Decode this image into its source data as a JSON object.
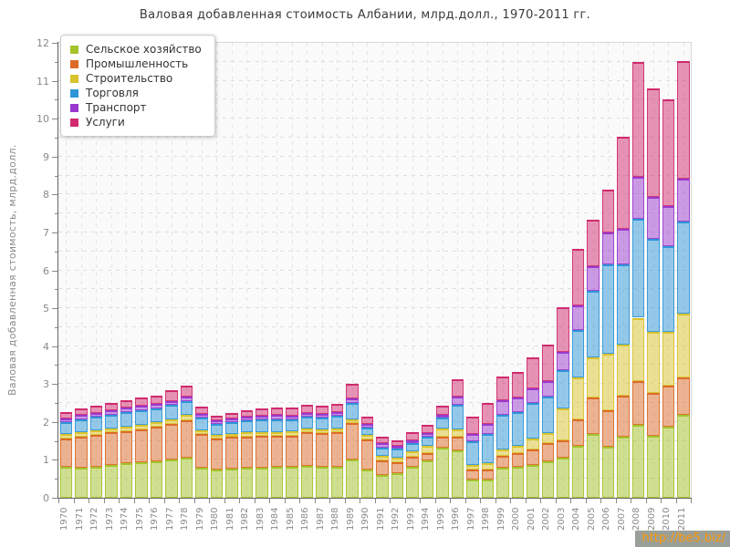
{
  "watermark": {
    "text": "http://be5.biz/"
  },
  "chart_data": {
    "type": "bar",
    "stacked": true,
    "title": "Валовая добавленная стоимость Албании, млрд.долл., 1970-2011 гг.",
    "ylabel": "Валовая добавленная стоимость, млрд.долл.",
    "xlabel": "",
    "ylim": [
      0,
      12
    ],
    "yticks": [
      0,
      1,
      2,
      3,
      4,
      5,
      6,
      7,
      8,
      9,
      10,
      11,
      12
    ],
    "grid": true,
    "legend_position": "top-left",
    "categories": [
      "1970",
      "1971",
      "1972",
      "1973",
      "1974",
      "1975",
      "1976",
      "1977",
      "1978",
      "1979",
      "1980",
      "1981",
      "1982",
      "1983",
      "1984",
      "1985",
      "1986",
      "1987",
      "1988",
      "1989",
      "1990",
      "1991",
      "1992",
      "1993",
      "1994",
      "1995",
      "1996",
      "1997",
      "1998",
      "1999",
      "2000",
      "2001",
      "2002",
      "2003",
      "2004",
      "2005",
      "2006",
      "2007",
      "2008",
      "2009",
      "2010",
      "2011"
    ],
    "series": [
      {
        "name": "Сельское хозяйство",
        "color": "#a4c42a",
        "values": [
          0.82,
          0.79,
          0.83,
          0.87,
          0.91,
          0.94,
          0.97,
          1.0,
          1.05,
          0.79,
          0.75,
          0.77,
          0.79,
          0.8,
          0.82,
          0.82,
          0.85,
          0.83,
          0.81,
          1.01,
          0.75,
          0.61,
          0.65,
          0.83,
          0.98,
          1.33,
          1.25,
          0.47,
          0.47,
          0.79,
          0.81,
          0.87,
          0.97,
          1.05,
          1.36,
          1.68,
          1.35,
          1.6,
          1.92,
          1.64,
          1.88,
          2.2
        ]
      },
      {
        "name": "Промышленность",
        "color": "#dc6b27",
        "values": [
          0.74,
          0.81,
          0.83,
          0.85,
          0.85,
          0.86,
          0.91,
          0.95,
          1.0,
          0.89,
          0.81,
          0.83,
          0.83,
          0.83,
          0.82,
          0.82,
          0.87,
          0.87,
          0.92,
          0.97,
          0.8,
          0.38,
          0.3,
          0.26,
          0.21,
          0.29,
          0.37,
          0.27,
          0.28,
          0.31,
          0.38,
          0.41,
          0.48,
          0.47,
          0.72,
          0.97,
          0.95,
          1.1,
          1.17,
          1.13,
          1.09,
          0.97
        ]
      },
      {
        "name": "Строительство",
        "color": "#d9c32c",
        "values": [
          0.12,
          0.12,
          0.12,
          0.12,
          0.12,
          0.12,
          0.12,
          0.13,
          0.13,
          0.1,
          0.09,
          0.09,
          0.1,
          0.1,
          0.1,
          0.12,
          0.1,
          0.1,
          0.11,
          0.1,
          0.12,
          0.12,
          0.11,
          0.14,
          0.17,
          0.2,
          0.18,
          0.13,
          0.16,
          0.18,
          0.18,
          0.28,
          0.25,
          0.84,
          1.09,
          1.05,
          1.5,
          1.35,
          1.66,
          1.61,
          1.41,
          1.7
        ]
      },
      {
        "name": "Торговля",
        "color": "#2d95d8",
        "values": [
          0.32,
          0.36,
          0.37,
          0.36,
          0.38,
          0.4,
          0.35,
          0.37,
          0.37,
          0.34,
          0.31,
          0.31,
          0.32,
          0.33,
          0.33,
          0.3,
          0.32,
          0.32,
          0.32,
          0.41,
          0.18,
          0.22,
          0.24,
          0.21,
          0.26,
          0.29,
          0.65,
          0.62,
          0.77,
          0.9,
          0.89,
          0.93,
          0.96,
          1.0,
          1.25,
          1.77,
          2.35,
          2.1,
          2.62,
          2.46,
          2.26,
          2.42
        ]
      },
      {
        "name": "Транспорт",
        "color": "#9939cf",
        "values": [
          0.1,
          0.1,
          0.09,
          0.11,
          0.11,
          0.11,
          0.12,
          0.11,
          0.12,
          0.1,
          0.08,
          0.1,
          0.1,
          0.11,
          0.11,
          0.1,
          0.1,
          0.1,
          0.11,
          0.13,
          0.1,
          0.11,
          0.08,
          0.08,
          0.08,
          0.09,
          0.22,
          0.19,
          0.28,
          0.39,
          0.39,
          0.4,
          0.41,
          0.48,
          0.66,
          0.65,
          0.85,
          0.95,
          1.09,
          1.09,
          1.05,
          1.13
        ]
      },
      {
        "name": "Услуги",
        "color": "#d02a6e",
        "values": [
          0.16,
          0.17,
          0.19,
          0.2,
          0.2,
          0.22,
          0.23,
          0.27,
          0.28,
          0.19,
          0.12,
          0.14,
          0.18,
          0.19,
          0.2,
          0.23,
          0.22,
          0.22,
          0.21,
          0.39,
          0.2,
          0.16,
          0.14,
          0.2,
          0.22,
          0.24,
          0.46,
          0.47,
          0.53,
          0.64,
          0.67,
          0.82,
          0.97,
          1.19,
          1.48,
          1.21,
          1.13,
          2.42,
          3.04,
          2.87,
          2.81,
          3.1
        ]
      }
    ]
  }
}
